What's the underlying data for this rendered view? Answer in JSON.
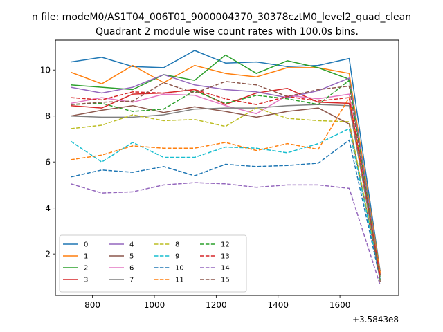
{
  "chart_data": {
    "type": "line",
    "suptitle": "n file: modeM0/AS1T04_006T01_9000004370_30378cztM0_level2_quad_clean",
    "title": "Quadrant 2 module wise count rates with 100.0s bins.",
    "xlabel": "",
    "ylabel": "",
    "offset_text": "+3.5843e8",
    "xlim": [
      680,
      1790
    ],
    "ylim": [
      0.2,
      11.3
    ],
    "xticks": [
      800,
      1000,
      1200,
      1400,
      1600
    ],
    "yticks": [
      2,
      4,
      6,
      8,
      10
    ],
    "legend_location": "lower-left",
    "x": [
      730,
      830,
      930,
      1030,
      1130,
      1230,
      1330,
      1430,
      1530,
      1630,
      1730
    ],
    "series": [
      {
        "name": "0",
        "color": "#1f77b4",
        "dash": false,
        "values": [
          10.35,
          10.55,
          10.15,
          10.1,
          10.85,
          10.3,
          10.35,
          10.15,
          10.2,
          10.5,
          1.25
        ]
      },
      {
        "name": "1",
        "color": "#ff7f0e",
        "dash": false,
        "values": [
          9.9,
          9.4,
          10.2,
          9.45,
          10.2,
          9.85,
          9.7,
          10.1,
          10.1,
          9.85,
          1.2
        ]
      },
      {
        "name": "2",
        "color": "#2ca02c",
        "dash": false,
        "values": [
          9.35,
          9.25,
          9.15,
          9.8,
          9.55,
          10.65,
          9.85,
          10.4,
          10.1,
          9.6,
          1.1
        ]
      },
      {
        "name": "3",
        "color": "#d62728",
        "dash": false,
        "values": [
          8.45,
          8.35,
          8.95,
          9.0,
          9.15,
          8.5,
          9.0,
          9.2,
          8.6,
          8.55,
          1.15
        ]
      },
      {
        "name": "4",
        "color": "#9467bd",
        "dash": false,
        "values": [
          9.25,
          9.0,
          9.25,
          9.8,
          9.35,
          9.15,
          9.05,
          8.8,
          9.1,
          9.65,
          1.05
        ]
      },
      {
        "name": "5",
        "color": "#8c564b",
        "dash": false,
        "values": [
          8.0,
          8.25,
          8.45,
          8.15,
          8.4,
          8.2,
          7.95,
          8.2,
          8.35,
          7.65,
          1.0
        ]
      },
      {
        "name": "6",
        "color": "#e377c2",
        "dash": false,
        "values": [
          8.55,
          8.8,
          8.6,
          8.95,
          8.9,
          8.45,
          8.1,
          8.9,
          8.75,
          8.95,
          1.0
        ]
      },
      {
        "name": "7",
        "color": "#7f7f7f",
        "dash": false,
        "values": [
          8.0,
          7.95,
          7.95,
          8.05,
          8.3,
          8.35,
          8.35,
          8.45,
          8.5,
          8.45,
          1.0
        ]
      },
      {
        "name": "8",
        "color": "#bcbd22",
        "dash": true,
        "values": [
          7.45,
          7.6,
          8.05,
          7.8,
          7.85,
          7.55,
          8.35,
          7.9,
          7.8,
          7.75,
          1.0
        ]
      },
      {
        "name": "9",
        "color": "#17becf",
        "dash": true,
        "values": [
          6.9,
          6.0,
          6.85,
          6.2,
          6.2,
          6.65,
          6.6,
          6.4,
          6.8,
          7.45,
          0.95
        ]
      },
      {
        "name": "10",
        "color": "#1f77b4",
        "dash": true,
        "values": [
          5.35,
          5.65,
          5.55,
          5.8,
          5.4,
          5.9,
          5.8,
          5.85,
          5.95,
          6.95,
          0.9
        ]
      },
      {
        "name": "11",
        "color": "#ff7f0e",
        "dash": true,
        "values": [
          6.1,
          6.3,
          6.7,
          6.6,
          6.6,
          6.85,
          6.5,
          6.8,
          6.55,
          8.8,
          1.15
        ]
      },
      {
        "name": "12",
        "color": "#2ca02c",
        "dash": true,
        "values": [
          8.5,
          8.55,
          8.2,
          8.3,
          9.1,
          8.55,
          8.9,
          8.75,
          8.5,
          9.55,
          0.85
        ]
      },
      {
        "name": "13",
        "color": "#d62728",
        "dash": true,
        "values": [
          8.8,
          8.7,
          9.05,
          9.0,
          9.15,
          8.75,
          8.5,
          8.85,
          8.65,
          8.8,
          1.05
        ]
      },
      {
        "name": "14",
        "color": "#9467bd",
        "dash": true,
        "values": [
          5.05,
          4.65,
          4.7,
          5.0,
          5.1,
          5.05,
          4.9,
          5.0,
          5.0,
          4.85,
          0.65
        ]
      },
      {
        "name": "15",
        "color": "#8c564b",
        "dash": true,
        "values": [
          8.5,
          8.6,
          8.65,
          9.45,
          9.0,
          9.5,
          9.35,
          8.85,
          9.15,
          9.3,
          0.8
        ]
      }
    ]
  }
}
